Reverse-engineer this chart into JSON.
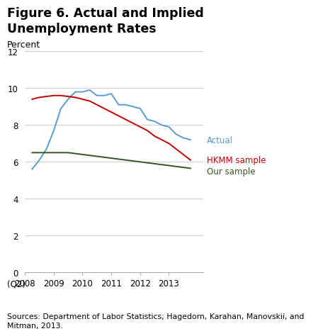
{
  "title_line1": "Figure 6. Actual and Implied",
  "title_line2": "Unemployment Rates",
  "ylabel": "Percent",
  "source_text": "Sources: Department of Labor Statistics; Hagedorn, Karahan, Manovskii, and\nMitman, 2013.",
  "xlabel_sub": "(Q2)",
  "ylim": [
    0,
    12
  ],
  "yticks": [
    0,
    2,
    4,
    6,
    8,
    10,
    12
  ],
  "actual_x": [
    2008.25,
    2008.5,
    2008.75,
    2009.0,
    2009.25,
    2009.5,
    2009.75,
    2010.0,
    2010.25,
    2010.5,
    2010.75,
    2011.0,
    2011.25,
    2011.5,
    2011.75,
    2012.0,
    2012.25,
    2012.5,
    2012.75,
    2013.0,
    2013.25,
    2013.5,
    2013.75
  ],
  "actual_y": [
    5.6,
    6.1,
    6.7,
    7.7,
    8.9,
    9.4,
    9.8,
    9.8,
    9.9,
    9.6,
    9.6,
    9.7,
    9.1,
    9.1,
    9.0,
    8.9,
    8.3,
    8.2,
    8.0,
    7.9,
    7.5,
    7.3,
    7.2
  ],
  "hkmm_x": [
    2008.25,
    2008.5,
    2008.75,
    2009.0,
    2009.25,
    2009.5,
    2009.75,
    2010.0,
    2010.25,
    2010.5,
    2010.75,
    2011.0,
    2011.25,
    2011.5,
    2011.75,
    2012.0,
    2012.25,
    2012.5,
    2012.75,
    2013.0,
    2013.25,
    2013.5,
    2013.75
  ],
  "hkmm_y": [
    9.4,
    9.5,
    9.55,
    9.6,
    9.6,
    9.55,
    9.5,
    9.4,
    9.3,
    9.1,
    8.9,
    8.7,
    8.5,
    8.3,
    8.1,
    7.9,
    7.7,
    7.4,
    7.2,
    7.0,
    6.7,
    6.4,
    6.1
  ],
  "our_x": [
    2008.25,
    2008.5,
    2008.75,
    2009.0,
    2009.25,
    2009.5,
    2009.75,
    2010.0,
    2010.25,
    2010.5,
    2010.75,
    2011.0,
    2011.25,
    2011.5,
    2011.75,
    2012.0,
    2012.25,
    2012.5,
    2012.75,
    2013.0,
    2013.25,
    2013.5,
    2013.75
  ],
  "our_y": [
    6.5,
    6.5,
    6.5,
    6.5,
    6.5,
    6.5,
    6.45,
    6.4,
    6.35,
    6.3,
    6.25,
    6.2,
    6.15,
    6.1,
    6.05,
    6.0,
    5.95,
    5.9,
    5.85,
    5.8,
    5.75,
    5.7,
    5.65
  ],
  "actual_color": "#5b9bd5",
  "hkmm_color": "#c00000",
  "our_color": "#375623",
  "actual_label": "Actual",
  "hkmm_label": "HKMM sample",
  "our_label": "Our sample",
  "xticks": [
    2008,
    2009,
    2010,
    2011,
    2012,
    2013
  ],
  "xlim_min": 2008.0,
  "xlim_max": 2014.2,
  "bg_color": "#ffffff",
  "grid_color": "#c8c8c8"
}
